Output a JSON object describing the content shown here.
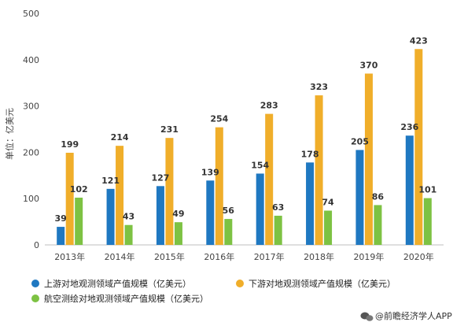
{
  "chart_data": {
    "type": "bar",
    "categories": [
      "2013年",
      "2014年",
      "2015年",
      "2016年",
      "2017年",
      "2018年",
      "2019年",
      "2020年"
    ],
    "series": [
      {
        "name": "上游对地观测领域产值规模（亿美元）",
        "color": "#1f78c1",
        "values": [
          39,
          121,
          127,
          139,
          154,
          178,
          205,
          236
        ]
      },
      {
        "name": "下游对地观测领域产值规模（亿美元）",
        "color": "#f0ae2a",
        "values": [
          199,
          214,
          231,
          254,
          283,
          323,
          370,
          423
        ]
      },
      {
        "name": "航空测绘对地观测领域产值规模（亿美元）",
        "color": "#7dc243",
        "values": [
          102,
          43,
          49,
          56,
          63,
          74,
          86,
          101
        ]
      }
    ],
    "ylabel": "单位：亿美元",
    "xlabel": "",
    "ylim": [
      0,
      500
    ],
    "yticks": [
      0,
      100,
      200,
      300,
      400,
      500
    ],
    "grid": false,
    "legend_position": "bottom",
    "show_data_labels": true
  },
  "source": {
    "icon": "wechat-icon",
    "text": "@前瞻经济学人APP"
  }
}
